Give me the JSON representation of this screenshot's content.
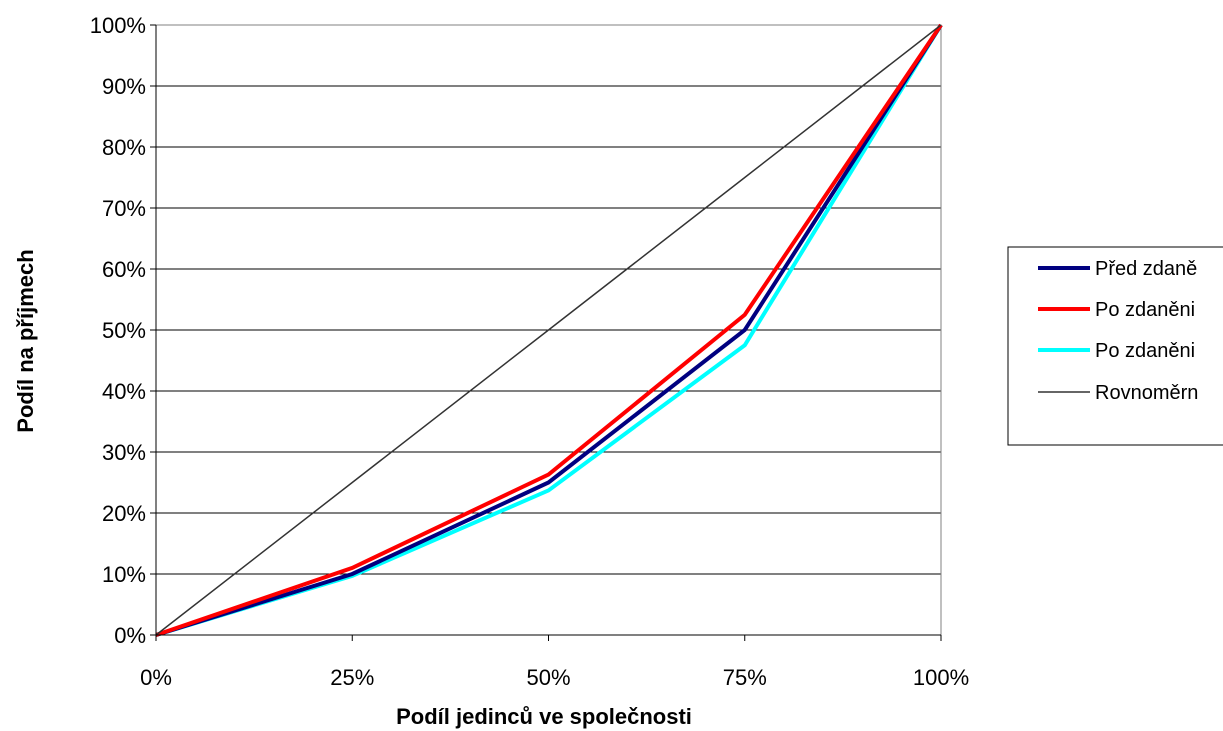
{
  "chart_data": {
    "type": "line",
    "title": "",
    "xlabel": "Podíl jedinců ve společnosti",
    "ylabel": "Podíl na příjmech",
    "x": [
      0,
      25,
      50,
      75,
      100
    ],
    "xlim": [
      0,
      100
    ],
    "ylim": [
      0,
      100
    ],
    "x_ticks": [
      "0%",
      "25%",
      "50%",
      "75%",
      "100%"
    ],
    "y_ticks": [
      "0%",
      "10%",
      "20%",
      "30%",
      "40%",
      "50%",
      "60%",
      "70%",
      "80%",
      "90%",
      "100%"
    ],
    "grid": "horizontal",
    "legend_position": "right",
    "series": [
      {
        "name": "Před zdaně",
        "color": "#000080",
        "values": [
          0,
          10,
          25,
          50,
          100
        ]
      },
      {
        "name": "Po zdaněni",
        "color": "#ff0000",
        "values": [
          0,
          11,
          26.3,
          52.5,
          100
        ]
      },
      {
        "name": "Po zdaněni",
        "color": "#00ffff",
        "values": [
          0,
          9.7,
          23.7,
          47.5,
          100
        ]
      },
      {
        "name": "Rovnoměrn",
        "color": "#333333",
        "values": [
          0,
          25,
          50,
          75,
          100
        ]
      }
    ]
  }
}
